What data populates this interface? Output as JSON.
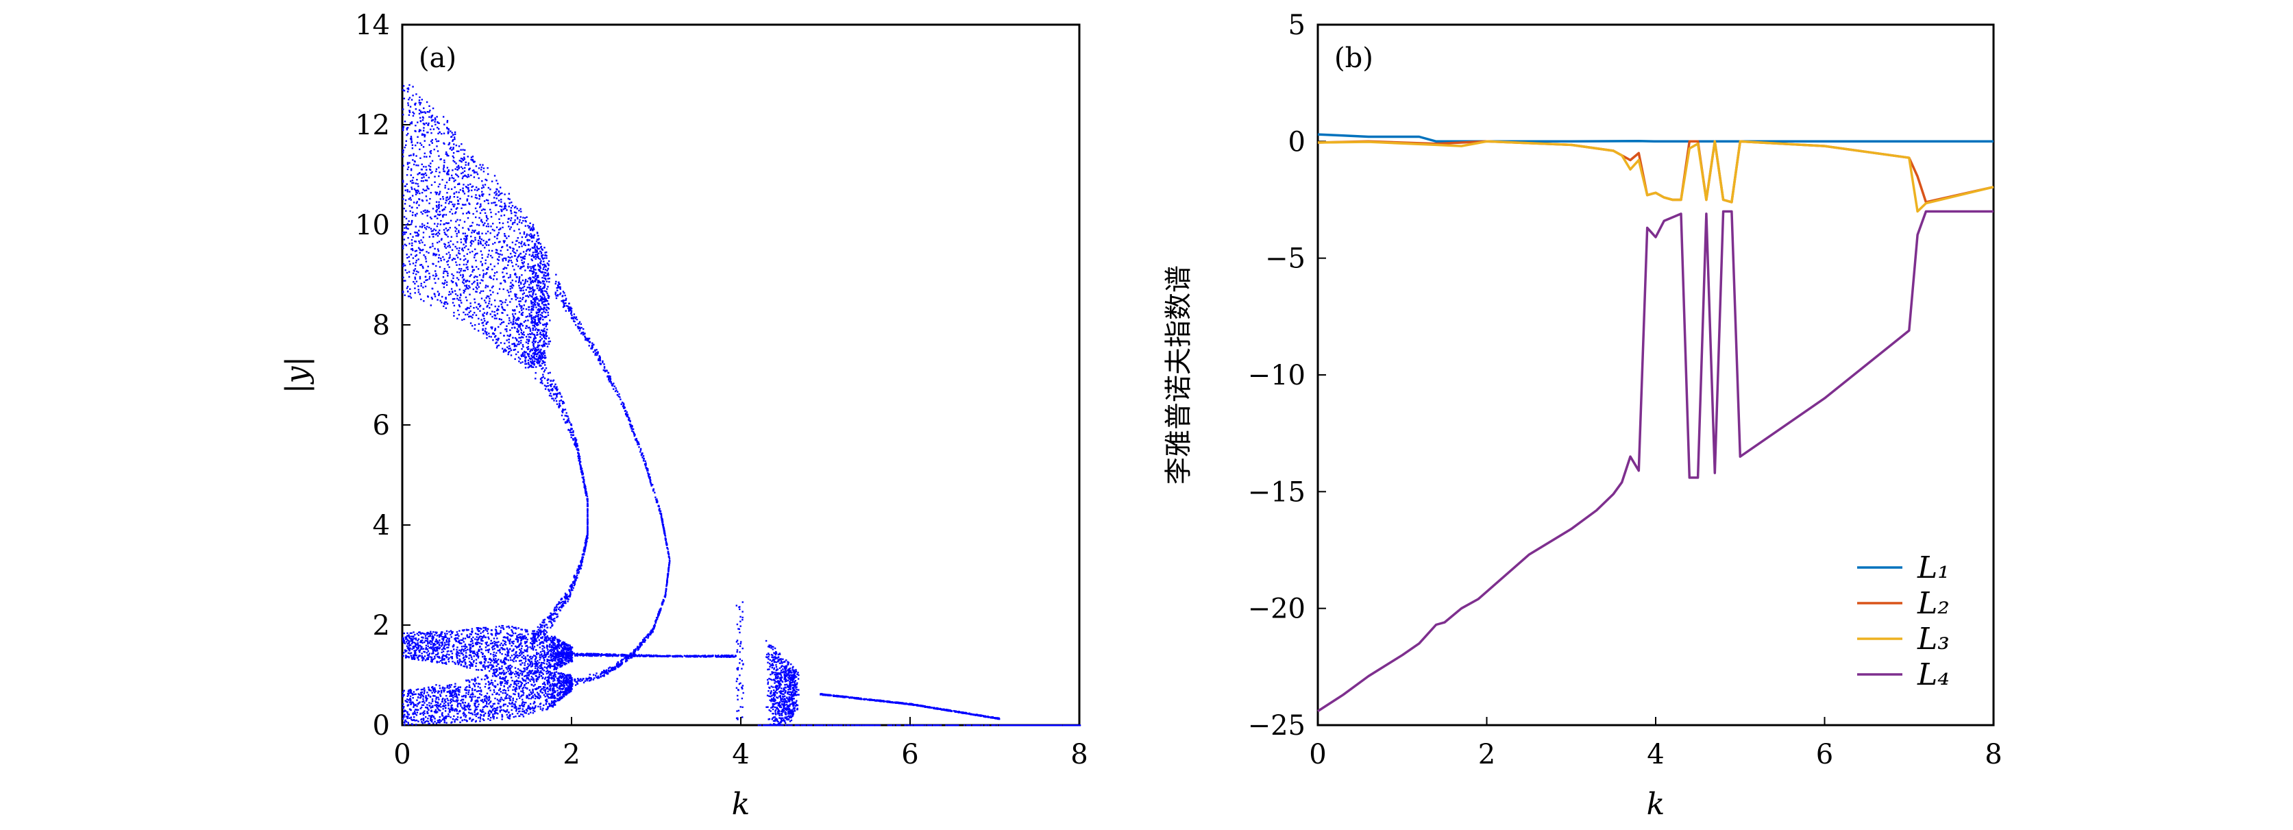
{
  "chart_data": [
    {
      "type": "scatter",
      "panel_label": "(a)",
      "xlabel": "k",
      "ylabel": "|y|",
      "xlim": [
        0,
        8
      ],
      "ylim": [
        0,
        14
      ],
      "xticks": [
        "0",
        "2",
        "4",
        "6",
        "8"
      ],
      "yticks": [
        "0",
        "2",
        "4",
        "6",
        "8",
        "10",
        "12",
        "14"
      ],
      "point_color": "#0000ff",
      "branches": [
        {
          "name": "upper-chaotic-band",
          "density": 2400,
          "pts": [
            [
              0,
              10.8,
              2.2
            ],
            [
              0.5,
              10.2,
              1.9
            ],
            [
              1.0,
              9.4,
              1.7
            ],
            [
              1.5,
              8.6,
              1.5
            ],
            [
              1.7,
              8.4,
              1.0
            ]
          ]
        },
        {
          "name": "inner-arc",
          "density": 700,
          "pts": [
            [
              1.3,
              7.9,
              0.35
            ],
            [
              1.6,
              7.2,
              0.3
            ],
            [
              1.85,
              6.5,
              0.2
            ],
            [
              2.05,
              5.6,
              0.1
            ],
            [
              2.18,
              4.5,
              0.06
            ],
            [
              2.18,
              3.8,
              0.06
            ],
            [
              2.1,
              3.2,
              0.08
            ],
            [
              1.95,
              2.6,
              0.12
            ],
            [
              1.75,
              2.1,
              0.15
            ],
            [
              1.5,
              1.7,
              0.15
            ]
          ]
        },
        {
          "name": "outer-arc",
          "density": 800,
          "pts": [
            [
              1.8,
              8.8,
              0.25
            ],
            [
              2.0,
              8.2,
              0.1
            ],
            [
              2.3,
              7.4,
              0.08
            ],
            [
              2.6,
              6.4,
              0.06
            ],
            [
              2.85,
              5.3,
              0.05
            ],
            [
              3.05,
              4.2,
              0.04
            ],
            [
              3.15,
              3.3,
              0.03
            ],
            [
              3.1,
              2.6,
              0.03
            ],
            [
              2.95,
              1.9,
              0.04
            ],
            [
              2.7,
              1.4,
              0.05
            ],
            [
              2.4,
              1.05,
              0.06
            ],
            [
              2.0,
              0.85,
              0.07
            ]
          ]
        },
        {
          "name": "period-line",
          "density": 500,
          "pts": [
            [
              1.8,
              1.42,
              0.03
            ],
            [
              2.5,
              1.4,
              0.02
            ],
            [
              3.2,
              1.38,
              0.01
            ],
            [
              3.95,
              1.38,
              0.02
            ]
          ]
        },
        {
          "name": "middle-chaotic-band",
          "density": 1600,
          "pts": [
            [
              0,
              1.6,
              0.25
            ],
            [
              0.6,
              1.55,
              0.35
            ],
            [
              1.2,
              1.5,
              0.5
            ],
            [
              1.7,
              1.45,
              0.4
            ],
            [
              2.0,
              1.42,
              0.15
            ]
          ]
        },
        {
          "name": "lower-chaotic-band",
          "density": 1500,
          "pts": [
            [
              0,
              0.35,
              0.35
            ],
            [
              0.6,
              0.45,
              0.4
            ],
            [
              1.2,
              0.6,
              0.5
            ],
            [
              1.7,
              0.7,
              0.4
            ],
            [
              2.0,
              0.85,
              0.15
            ]
          ]
        },
        {
          "name": "vertical-scatter-k4",
          "density": 60,
          "pts": [
            [
              3.98,
              1.25,
              1.25
            ],
            [
              3.98,
              1.25,
              1.25
            ]
          ]
        },
        {
          "name": "window-cloud",
          "density": 700,
          "pts": [
            [
              4.33,
              0.85,
              0.85
            ],
            [
              4.45,
              0.7,
              0.7
            ],
            [
              4.55,
              0.65,
              0.6
            ],
            [
              4.65,
              0.7,
              0.4
            ]
          ]
        },
        {
          "name": "periodic-branch",
          "density": 600,
          "pts": [
            [
              4.93,
              0.62,
              0.01
            ],
            [
              6.0,
              0.42,
              0.01
            ],
            [
              7.05,
              0.13,
              0.01
            ]
          ]
        },
        {
          "name": "zero-line",
          "density": 500,
          "pts": [
            [
              4.2,
              0.0,
              0.0
            ],
            [
              7.05,
              0.0,
              0.0
            ],
            [
              8.0,
              0.0,
              0.0
            ]
          ]
        }
      ]
    },
    {
      "type": "line",
      "panel_label": "(b)",
      "xlabel": "k",
      "ylabel": "李雅普诺夫指数谱",
      "xlim": [
        0,
        8
      ],
      "ylim": [
        -25,
        5
      ],
      "xticks": [
        "0",
        "2",
        "4",
        "6",
        "8"
      ],
      "yticks": [
        "5",
        "0",
        "−5",
        "−10",
        "−15",
        "−20",
        "−25"
      ],
      "ytick_values": [
        5,
        0,
        -5,
        -10,
        -15,
        -20,
        -25
      ],
      "legend_position": "bottom-right",
      "series": [
        {
          "name": "L₁",
          "color": "#0072BD",
          "x": [
            0,
            0.3,
            0.6,
            1.0,
            1.2,
            1.4,
            2,
            3,
            3.8,
            4,
            5,
            6,
            7,
            8
          ],
          "y": [
            0.3,
            0.25,
            0.2,
            0.2,
            0.2,
            0.0,
            0,
            0,
            0.02,
            0,
            0,
            0,
            0,
            0
          ]
        },
        {
          "name": "L₂",
          "color": "#D95319",
          "x": [
            0,
            0.6,
            1.4,
            1.7,
            2,
            3,
            3.5,
            3.6,
            3.7,
            3.8,
            3.9,
            4.0,
            4.1,
            4.2,
            4.3,
            4.4,
            4.5,
            4.6,
            4.7,
            4.8,
            4.9,
            5.0,
            6,
            7,
            7.1,
            7.2,
            8
          ],
          "y": [
            -0.05,
            0,
            -0.1,
            -0.05,
            0,
            -0.15,
            -0.4,
            -0.6,
            -0.8,
            -0.5,
            -2.3,
            -2.2,
            -2.4,
            -2.5,
            -2.5,
            0,
            0,
            -2.5,
            0,
            -2.5,
            -2.6,
            0,
            -0.2,
            -0.7,
            -1.5,
            -2.6,
            -1.95
          ]
        },
        {
          "name": "L₃",
          "color": "#EDB120",
          "x": [
            0,
            0.6,
            1.4,
            1.7,
            2,
            3,
            3.5,
            3.6,
            3.7,
            3.8,
            3.9,
            4.0,
            4.1,
            4.2,
            4.3,
            4.4,
            4.5,
            4.6,
            4.7,
            4.8,
            4.9,
            5.0,
            6,
            7,
            7.1,
            7.2,
            8
          ],
          "y": [
            -0.05,
            -0.02,
            -0.15,
            -0.2,
            0,
            -0.15,
            -0.4,
            -0.6,
            -1.2,
            -0.8,
            -2.3,
            -2.2,
            -2.4,
            -2.5,
            -2.5,
            -0.3,
            -0.1,
            -2.5,
            0,
            -2.5,
            -2.6,
            0,
            -0.2,
            -0.7,
            -3.0,
            -2.65,
            -1.95
          ]
        },
        {
          "name": "L₄",
          "color": "#7E2F8E",
          "x": [
            0,
            0.3,
            0.6,
            1.0,
            1.2,
            1.4,
            1.5,
            1.7,
            1.9,
            2.5,
            3,
            3.3,
            3.5,
            3.6,
            3.7,
            3.8,
            3.9,
            4.0,
            4.1,
            4.3,
            4.4,
            4.5,
            4.6,
            4.7,
            4.8,
            4.9,
            5.0,
            6,
            7,
            7.1,
            7.2,
            8
          ],
          "y": [
            -24.4,
            -23.7,
            -22.9,
            -22,
            -21.5,
            -20.7,
            -20.6,
            -20,
            -19.6,
            -17.7,
            -16.6,
            -15.8,
            -15.1,
            -14.6,
            -13.5,
            -14.1,
            -3.7,
            -4.1,
            -3.4,
            -3.1,
            -14.4,
            -14.4,
            -3.1,
            -14.2,
            -3.0,
            -3.0,
            -13.5,
            -11,
            -8.1,
            -4,
            -3,
            -3
          ]
        }
      ]
    }
  ]
}
